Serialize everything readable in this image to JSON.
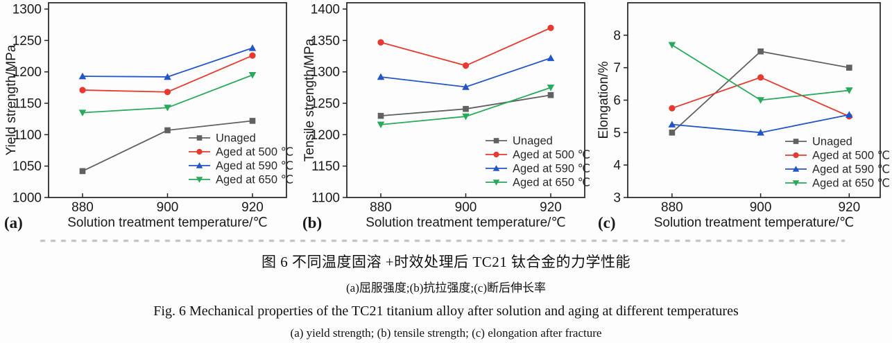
{
  "figure": {
    "caption_zh_title": "图 6  不同温度固溶 +时效处理后 TC21 钛合金的力学性能",
    "caption_zh_sub": "(a)屈服强度;(b)抗拉强度;(c)断后伸长率",
    "caption_en_title": "Fig. 6  Mechanical properties of the TC21 titanium alloy after solution and aging at different temperatures",
    "caption_en_sub": "(a) yield strength; (b) tensile strength; (c) elongation after fracture"
  },
  "colors": {
    "unaged": "#616161",
    "aged_500": "#e8382f",
    "aged_590": "#2355c8",
    "aged_650": "#28aa5a",
    "axis": "#222222"
  },
  "chart_data": [
    {
      "type": "line",
      "panel_label": "(a)",
      "xlabel": "Solution treatment temperature/℃",
      "ylabel": "Yield strength/MPa",
      "x": [
        880,
        900,
        920
      ],
      "xlim": [
        872,
        928
      ],
      "ylim": [
        1000,
        1310
      ],
      "yticks": [
        1000,
        1050,
        1100,
        1150,
        1200,
        1250,
        1300
      ],
      "grid": false,
      "legend_position": "lower right inside",
      "series": [
        {
          "name": "Unaged",
          "color": "#616161",
          "marker": "square",
          "values": [
            1042,
            1107,
            1122
          ]
        },
        {
          "name": "Aged at 500 ℃",
          "color": "#e8382f",
          "marker": "circle",
          "values": [
            1171,
            1168,
            1226
          ]
        },
        {
          "name": "Aged at 590 ℃",
          "color": "#2355c8",
          "marker": "triangle-up",
          "values": [
            1193,
            1192,
            1238
          ]
        },
        {
          "name": "Aged at 650 ℃",
          "color": "#28aa5a",
          "marker": "triangle-down",
          "values": [
            1135,
            1143,
            1195
          ]
        }
      ]
    },
    {
      "type": "line",
      "panel_label": "(b)",
      "xlabel": "Solution treatment temperature/℃",
      "ylabel": "Tensile strength/MPa",
      "x": [
        880,
        900,
        920
      ],
      "xlim": [
        872,
        928
      ],
      "ylim": [
        1100,
        1410
      ],
      "yticks": [
        1100,
        1150,
        1200,
        1250,
        1300,
        1350,
        1400
      ],
      "grid": false,
      "legend_position": "lower right inside",
      "series": [
        {
          "name": "Unaged",
          "color": "#616161",
          "marker": "square",
          "values": [
            1230,
            1241,
            1263
          ]
        },
        {
          "name": "Aged at 500 ℃",
          "color": "#e8382f",
          "marker": "circle",
          "values": [
            1347,
            1310,
            1370
          ]
        },
        {
          "name": "Aged at 590 ℃",
          "color": "#2355c8",
          "marker": "triangle-up",
          "values": [
            1292,
            1276,
            1322
          ]
        },
        {
          "name": "Aged at 650 ℃",
          "color": "#28aa5a",
          "marker": "triangle-down",
          "values": [
            1216,
            1229,
            1275
          ]
        }
      ]
    },
    {
      "type": "line",
      "panel_label": "(c)",
      "xlabel": "Solution treatment temperature/℃",
      "ylabel": "Elongation/%",
      "x": [
        880,
        900,
        920
      ],
      "xlim": [
        870,
        927
      ],
      "ylim": [
        3,
        9
      ],
      "yticks": [
        3,
        4,
        5,
        6,
        7,
        8
      ],
      "grid": false,
      "legend_position": "lower right inside",
      "series": [
        {
          "name": "Unaged",
          "color": "#616161",
          "marker": "square",
          "values": [
            5.0,
            7.5,
            7.0
          ]
        },
        {
          "name": "Aged at 500 ℃",
          "color": "#e8382f",
          "marker": "circle",
          "values": [
            5.75,
            6.7,
            5.5
          ]
        },
        {
          "name": "Aged at 590 ℃",
          "color": "#2355c8",
          "marker": "triangle-up",
          "values": [
            5.25,
            5.0,
            5.55
          ]
        },
        {
          "name": "Aged at 650 ℃",
          "color": "#28aa5a",
          "marker": "triangle-down",
          "values": [
            7.7,
            6.0,
            6.3
          ]
        }
      ]
    }
  ]
}
